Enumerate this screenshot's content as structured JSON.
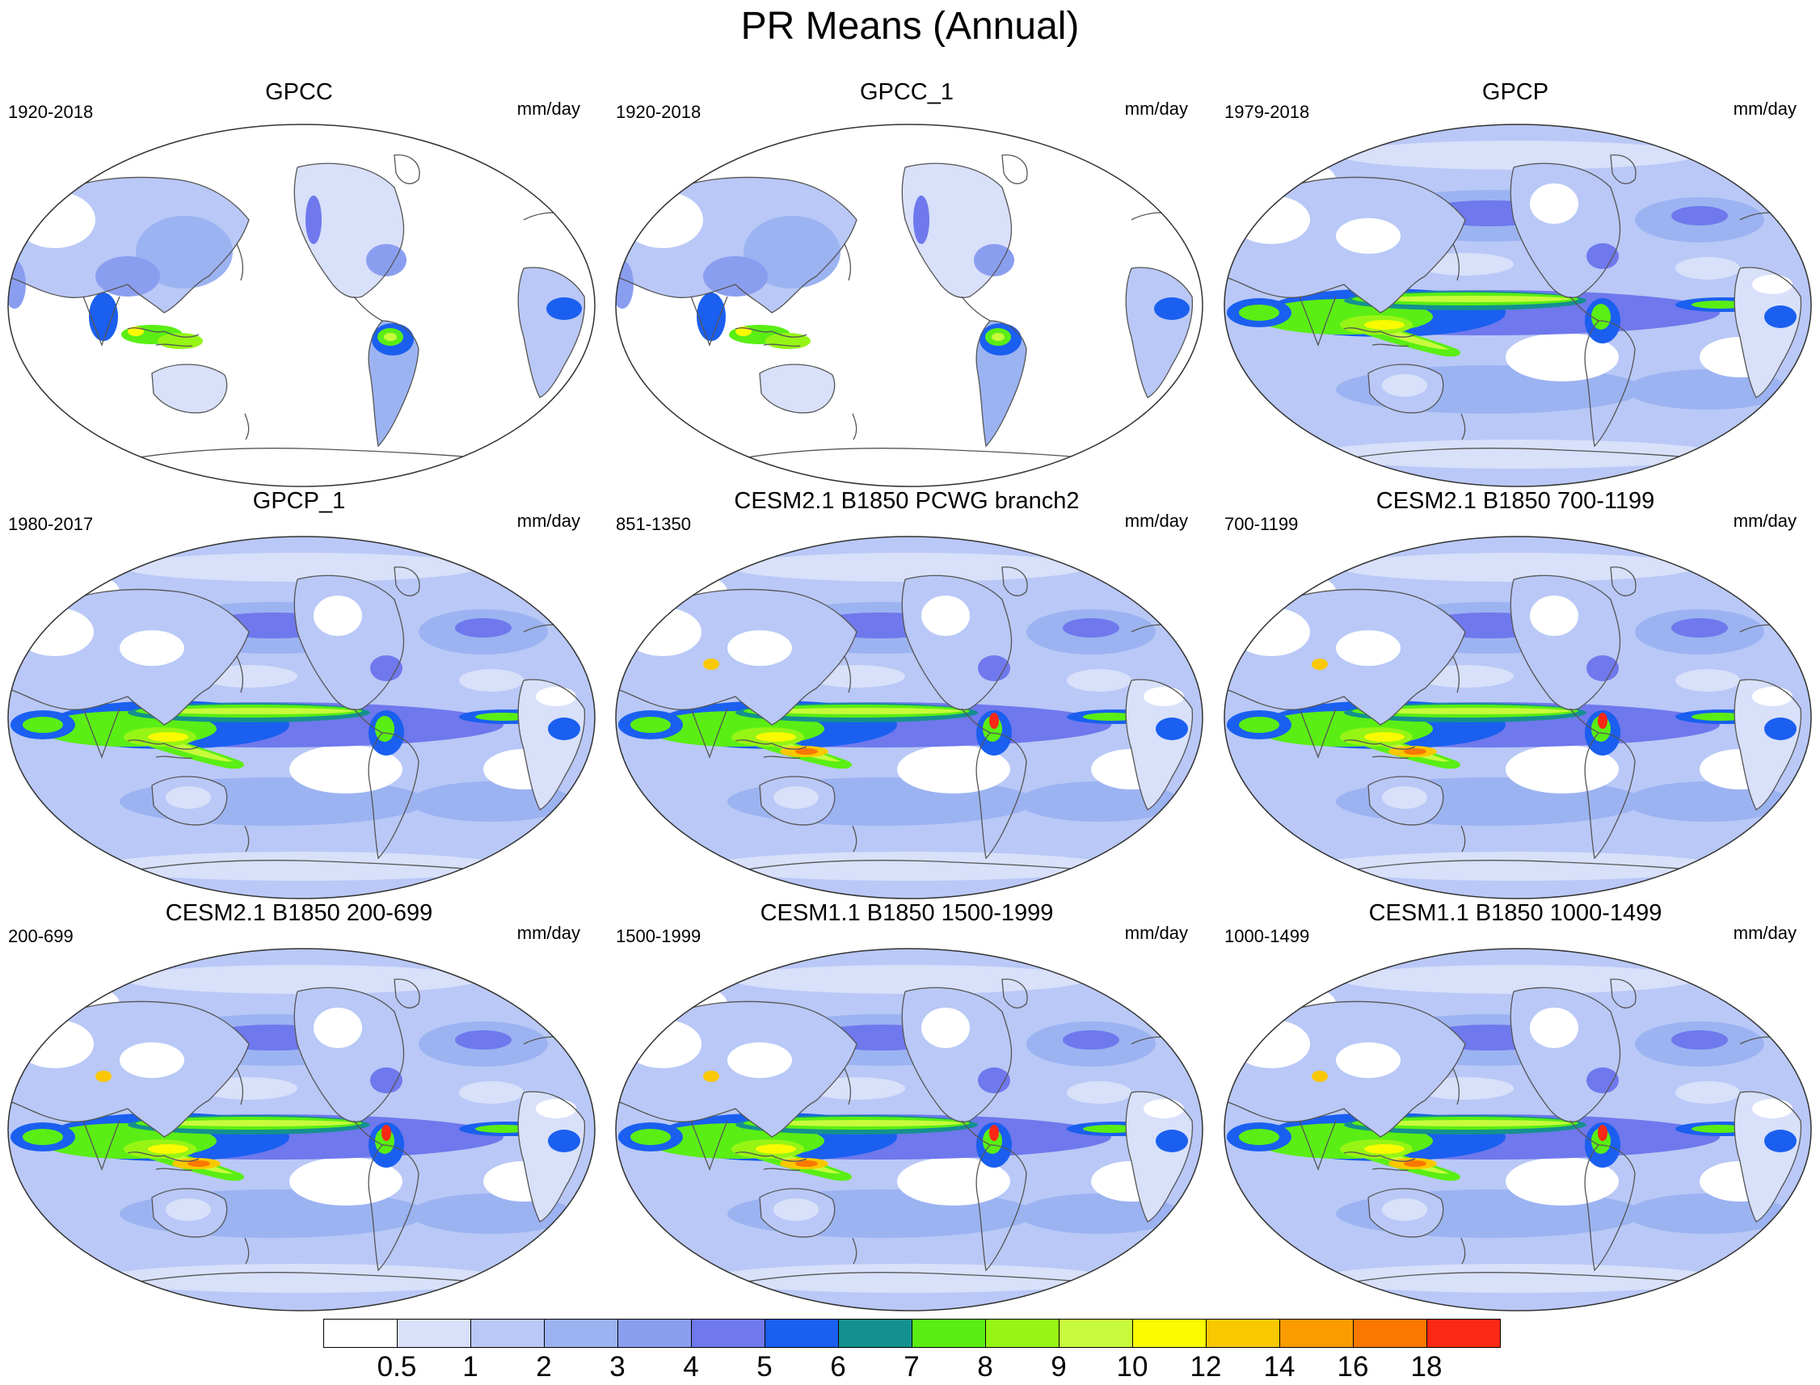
{
  "figure": {
    "title": "PR Means (Annual)"
  },
  "panels": [
    {
      "title": "GPCC",
      "years": "1920-2018",
      "units": "mm/day",
      "type": "land"
    },
    {
      "title": "GPCC_1",
      "years": "1920-2018",
      "units": "mm/day",
      "type": "land"
    },
    {
      "title": "GPCP",
      "years": "1979-2018",
      "units": "mm/day",
      "type": "obs"
    },
    {
      "title": "GPCP_1",
      "years": "1980-2017",
      "units": "mm/day",
      "type": "obs"
    },
    {
      "title": "CESM2.1 B1850 PCWG branch2",
      "years": "851-1350",
      "units": "mm/day",
      "type": "model"
    },
    {
      "title": "CESM2.1 B1850 700-1199",
      "years": "700-1199",
      "units": "mm/day",
      "type": "model"
    },
    {
      "title": "CESM2.1 B1850 200-699",
      "years": "200-699",
      "units": "mm/day",
      "type": "model"
    },
    {
      "title": "CESM1.1 B1850 1500-1999",
      "years": "1500-1999",
      "units": "mm/day",
      "type": "model"
    },
    {
      "title": "CESM1.1 B1850 1000-1499",
      "years": "1000-1499",
      "units": "mm/day",
      "type": "model"
    }
  ],
  "colorbar": {
    "colors": [
      "#ffffff",
      "#d8e0fa",
      "#b9c8f6",
      "#9cb3f2",
      "#8a9ef0",
      "#6f78ec",
      "#1a5ff0",
      "#149090",
      "#5aee14",
      "#96f514",
      "#c8fa3c",
      "#fafa00",
      "#fac800",
      "#fa9b00",
      "#fa7800",
      "#fa2814"
    ],
    "labels": [
      "0.5",
      "1",
      "2",
      "3",
      "4",
      "5",
      "6",
      "7",
      "8",
      "9",
      "10",
      "12",
      "14",
      "16",
      "18"
    ]
  }
}
